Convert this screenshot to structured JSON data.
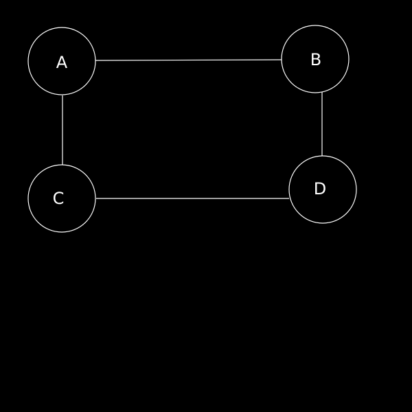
{
  "colors": {
    "background": "#000000",
    "stroke": "#ffffff",
    "node_fill": "#000000",
    "text": "#ffffff"
  },
  "nodes": [
    {
      "id": "A",
      "label": "A"
    },
    {
      "id": "B",
      "label": "B"
    },
    {
      "id": "C",
      "label": "C"
    },
    {
      "id": "D",
      "label": "D"
    }
  ],
  "edges": [
    {
      "from": "A",
      "to": "B"
    },
    {
      "from": "A",
      "to": "C"
    },
    {
      "from": "B",
      "to": "D"
    },
    {
      "from": "C",
      "to": "D"
    }
  ]
}
